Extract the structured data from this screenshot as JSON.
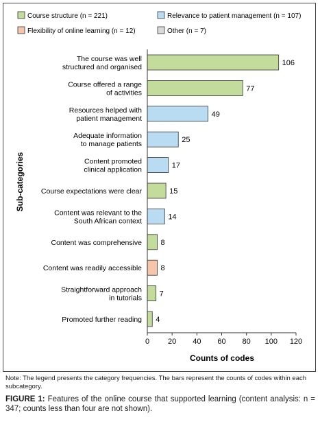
{
  "chart_data": {
    "type": "bar",
    "orientation": "horizontal",
    "xlabel": "Counts of codes",
    "ylabel": "Sub-categories",
    "xlim": [
      0,
      120
    ],
    "xticks": [
      "0",
      "20",
      "40",
      "60",
      "80",
      "100",
      "120"
    ],
    "grid": false,
    "legend_position": "top",
    "legend": [
      {
        "name": "Course structure (n = 221)",
        "color": "#c3dc9c"
      },
      {
        "name": "Relevance to patient management (n = 107)",
        "color": "#b9dcf2"
      },
      {
        "name": "Flexibility of online learning (n = 12)",
        "color": "#f6c5aa"
      },
      {
        "name": "Other (n = 7)",
        "color": "#d9d9d9"
      }
    ],
    "bars": [
      {
        "label": [
          "The course was well",
          "structured and organised"
        ],
        "value": 106,
        "color": "#c3dc9c"
      },
      {
        "label": [
          "Course offered a range",
          "of activities"
        ],
        "value": 77,
        "color": "#c3dc9c"
      },
      {
        "label": [
          "Resources helped with",
          "patient management"
        ],
        "value": 49,
        "color": "#b9dcf2"
      },
      {
        "label": [
          "Adequate information",
          "to manage patients"
        ],
        "value": 25,
        "color": "#b9dcf2"
      },
      {
        "label": [
          "Content promoted",
          "clinical application"
        ],
        "value": 17,
        "color": "#b9dcf2"
      },
      {
        "label": [
          "Course expectations were clear"
        ],
        "value": 15,
        "color": "#c3dc9c"
      },
      {
        "label": [
          "Content was relevant to the",
          "South African context"
        ],
        "value": 14,
        "color": "#b9dcf2"
      },
      {
        "label": [
          "Content was comprehensive"
        ],
        "value": 8,
        "color": "#c3dc9c"
      },
      {
        "label": [
          "Content was readily accessible"
        ],
        "value": 8,
        "color": "#f6c5aa"
      },
      {
        "label": [
          "Straightforward approach",
          "in tutorials"
        ],
        "value": 7,
        "color": "#c3dc9c"
      },
      {
        "label": [
          "Promoted further reading"
        ],
        "value": 4,
        "color": "#c3dc9c"
      }
    ]
  },
  "note": "Note: The legend presents the category frequencies. The bars represent the counts of codes within each subcategory.",
  "caption": {
    "label": "FIGURE 1:",
    "text": "Features of the online course that supported learning (content analysis: n = 347; counts less than four are not shown)."
  }
}
